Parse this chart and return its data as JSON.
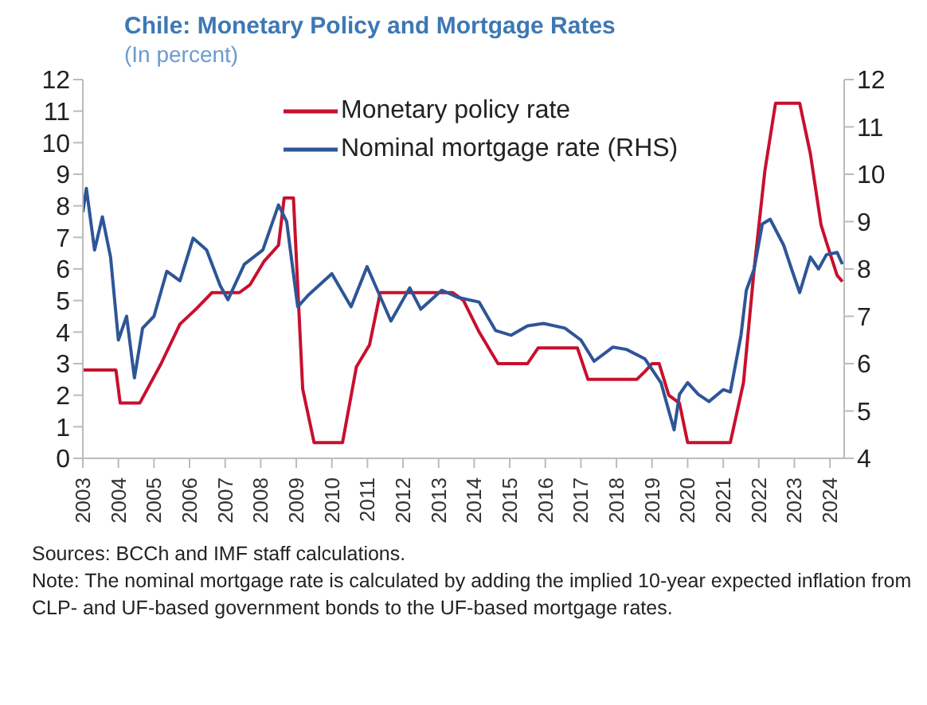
{
  "chart_data": {
    "type": "line",
    "title": "Chile: Monetary Policy and Mortgage Rates",
    "subtitle": "(In percent)",
    "xlim": [
      2003,
      2024.4
    ],
    "xticks": [
      2003,
      2004,
      2005,
      2006,
      2007,
      2008,
      2009,
      2010,
      2011,
      2012,
      2013,
      2014,
      2015,
      2016,
      2017,
      2018,
      2019,
      2020,
      2021,
      2022,
      2023,
      2024
    ],
    "ylim": [
      0,
      12
    ],
    "yticks": [
      0,
      1,
      2,
      3,
      4,
      5,
      6,
      7,
      8,
      9,
      10,
      11,
      12
    ],
    "y2lim": [
      4,
      12
    ],
    "y2ticks": [
      4,
      5,
      6,
      7,
      8,
      9,
      10,
      11,
      12
    ],
    "legend": "top",
    "series": [
      {
        "name": "Monetary policy rate",
        "color": "#c8102e",
        "x": [
          2003,
          2003.93,
          2004.05,
          2004.6,
          2005.2,
          2005.73,
          2006.2,
          2006.63,
          2007.4,
          2007.7,
          2008.1,
          2008.5,
          2008.66,
          2008.92,
          2009.18,
          2009.5,
          2010.3,
          2010.69,
          2011.06,
          2011.36,
          2013.4,
          2013.7,
          2014.14,
          2014.67,
          2015.5,
          2015.8,
          2016.9,
          2017.2,
          2018.57,
          2018.8,
          2019.0,
          2019.2,
          2019.47,
          2019.77,
          2020.0,
          2021.2,
          2021.57,
          2021.87,
          2022.17,
          2022.47,
          2023.15,
          2023.45,
          2023.75,
          2023.9,
          2024.2,
          2024.35
        ],
        "values": [
          2.8,
          2.8,
          1.75,
          1.75,
          3.0,
          4.25,
          4.75,
          5.25,
          5.25,
          5.5,
          6.25,
          6.75,
          8.25,
          8.25,
          2.2,
          0.5,
          0.5,
          2.9,
          3.6,
          5.25,
          5.25,
          5.0,
          4.0,
          3.0,
          3.0,
          3.5,
          3.5,
          2.5,
          2.5,
          2.75,
          3.0,
          3.0,
          2.0,
          1.75,
          0.5,
          0.5,
          2.4,
          6.0,
          9.1,
          11.25,
          11.25,
          9.65,
          7.4,
          6.85,
          5.8,
          5.6
        ]
      },
      {
        "name": "Nominal mortgage rate (RHS)",
        "color": "#2e5597",
        "axis": "y2",
        "x": [
          2003,
          2003.1,
          2003.33,
          2003.55,
          2003.78,
          2004.0,
          2004.23,
          2004.45,
          2004.68,
          2005.0,
          2005.36,
          2005.73,
          2006.1,
          2006.48,
          2006.86,
          2007.08,
          2007.54,
          2008.06,
          2008.5,
          2008.73,
          2009.04,
          2009.34,
          2010.0,
          2010.54,
          2010.99,
          2011.66,
          2012.19,
          2012.5,
          2013.09,
          2013.54,
          2014.14,
          2014.6,
          2015.04,
          2015.5,
          2015.95,
          2016.55,
          2017.0,
          2017.37,
          2017.9,
          2018.28,
          2018.8,
          2019.25,
          2019.62,
          2019.77,
          2020.0,
          2020.3,
          2020.6,
          2021.0,
          2021.2,
          2021.5,
          2021.65,
          2021.87,
          2022.1,
          2022.32,
          2022.7,
          2022.92,
          2023.15,
          2023.45,
          2023.68,
          2023.9,
          2024.2,
          2024.35
        ],
        "values": [
          9.2,
          9.7,
          8.4,
          9.1,
          8.25,
          6.5,
          7.0,
          5.7,
          6.75,
          7.0,
          7.95,
          7.75,
          8.65,
          8.4,
          7.65,
          7.35,
          8.1,
          8.4,
          9.35,
          9.0,
          7.2,
          7.45,
          7.9,
          7.2,
          8.05,
          6.9,
          7.6,
          7.15,
          7.55,
          7.4,
          7.3,
          6.7,
          6.6,
          6.8,
          6.85,
          6.75,
          6.5,
          6.05,
          6.35,
          6.3,
          6.1,
          5.6,
          4.6,
          5.35,
          5.6,
          5.35,
          5.2,
          5.45,
          5.4,
          6.6,
          7.55,
          8.0,
          8.95,
          9.05,
          8.5,
          8.0,
          7.5,
          8.25,
          8.0,
          8.3,
          8.35,
          8.1
        ]
      }
    ],
    "annotations": [
      "Sources: BCCh  and IMF staff calculations.",
      "Note: The nominal mortgage rate is calculated by adding the implied 10-year expected inflation from CLP- and UF-based government bonds to the UF-based mortgage rates."
    ]
  }
}
